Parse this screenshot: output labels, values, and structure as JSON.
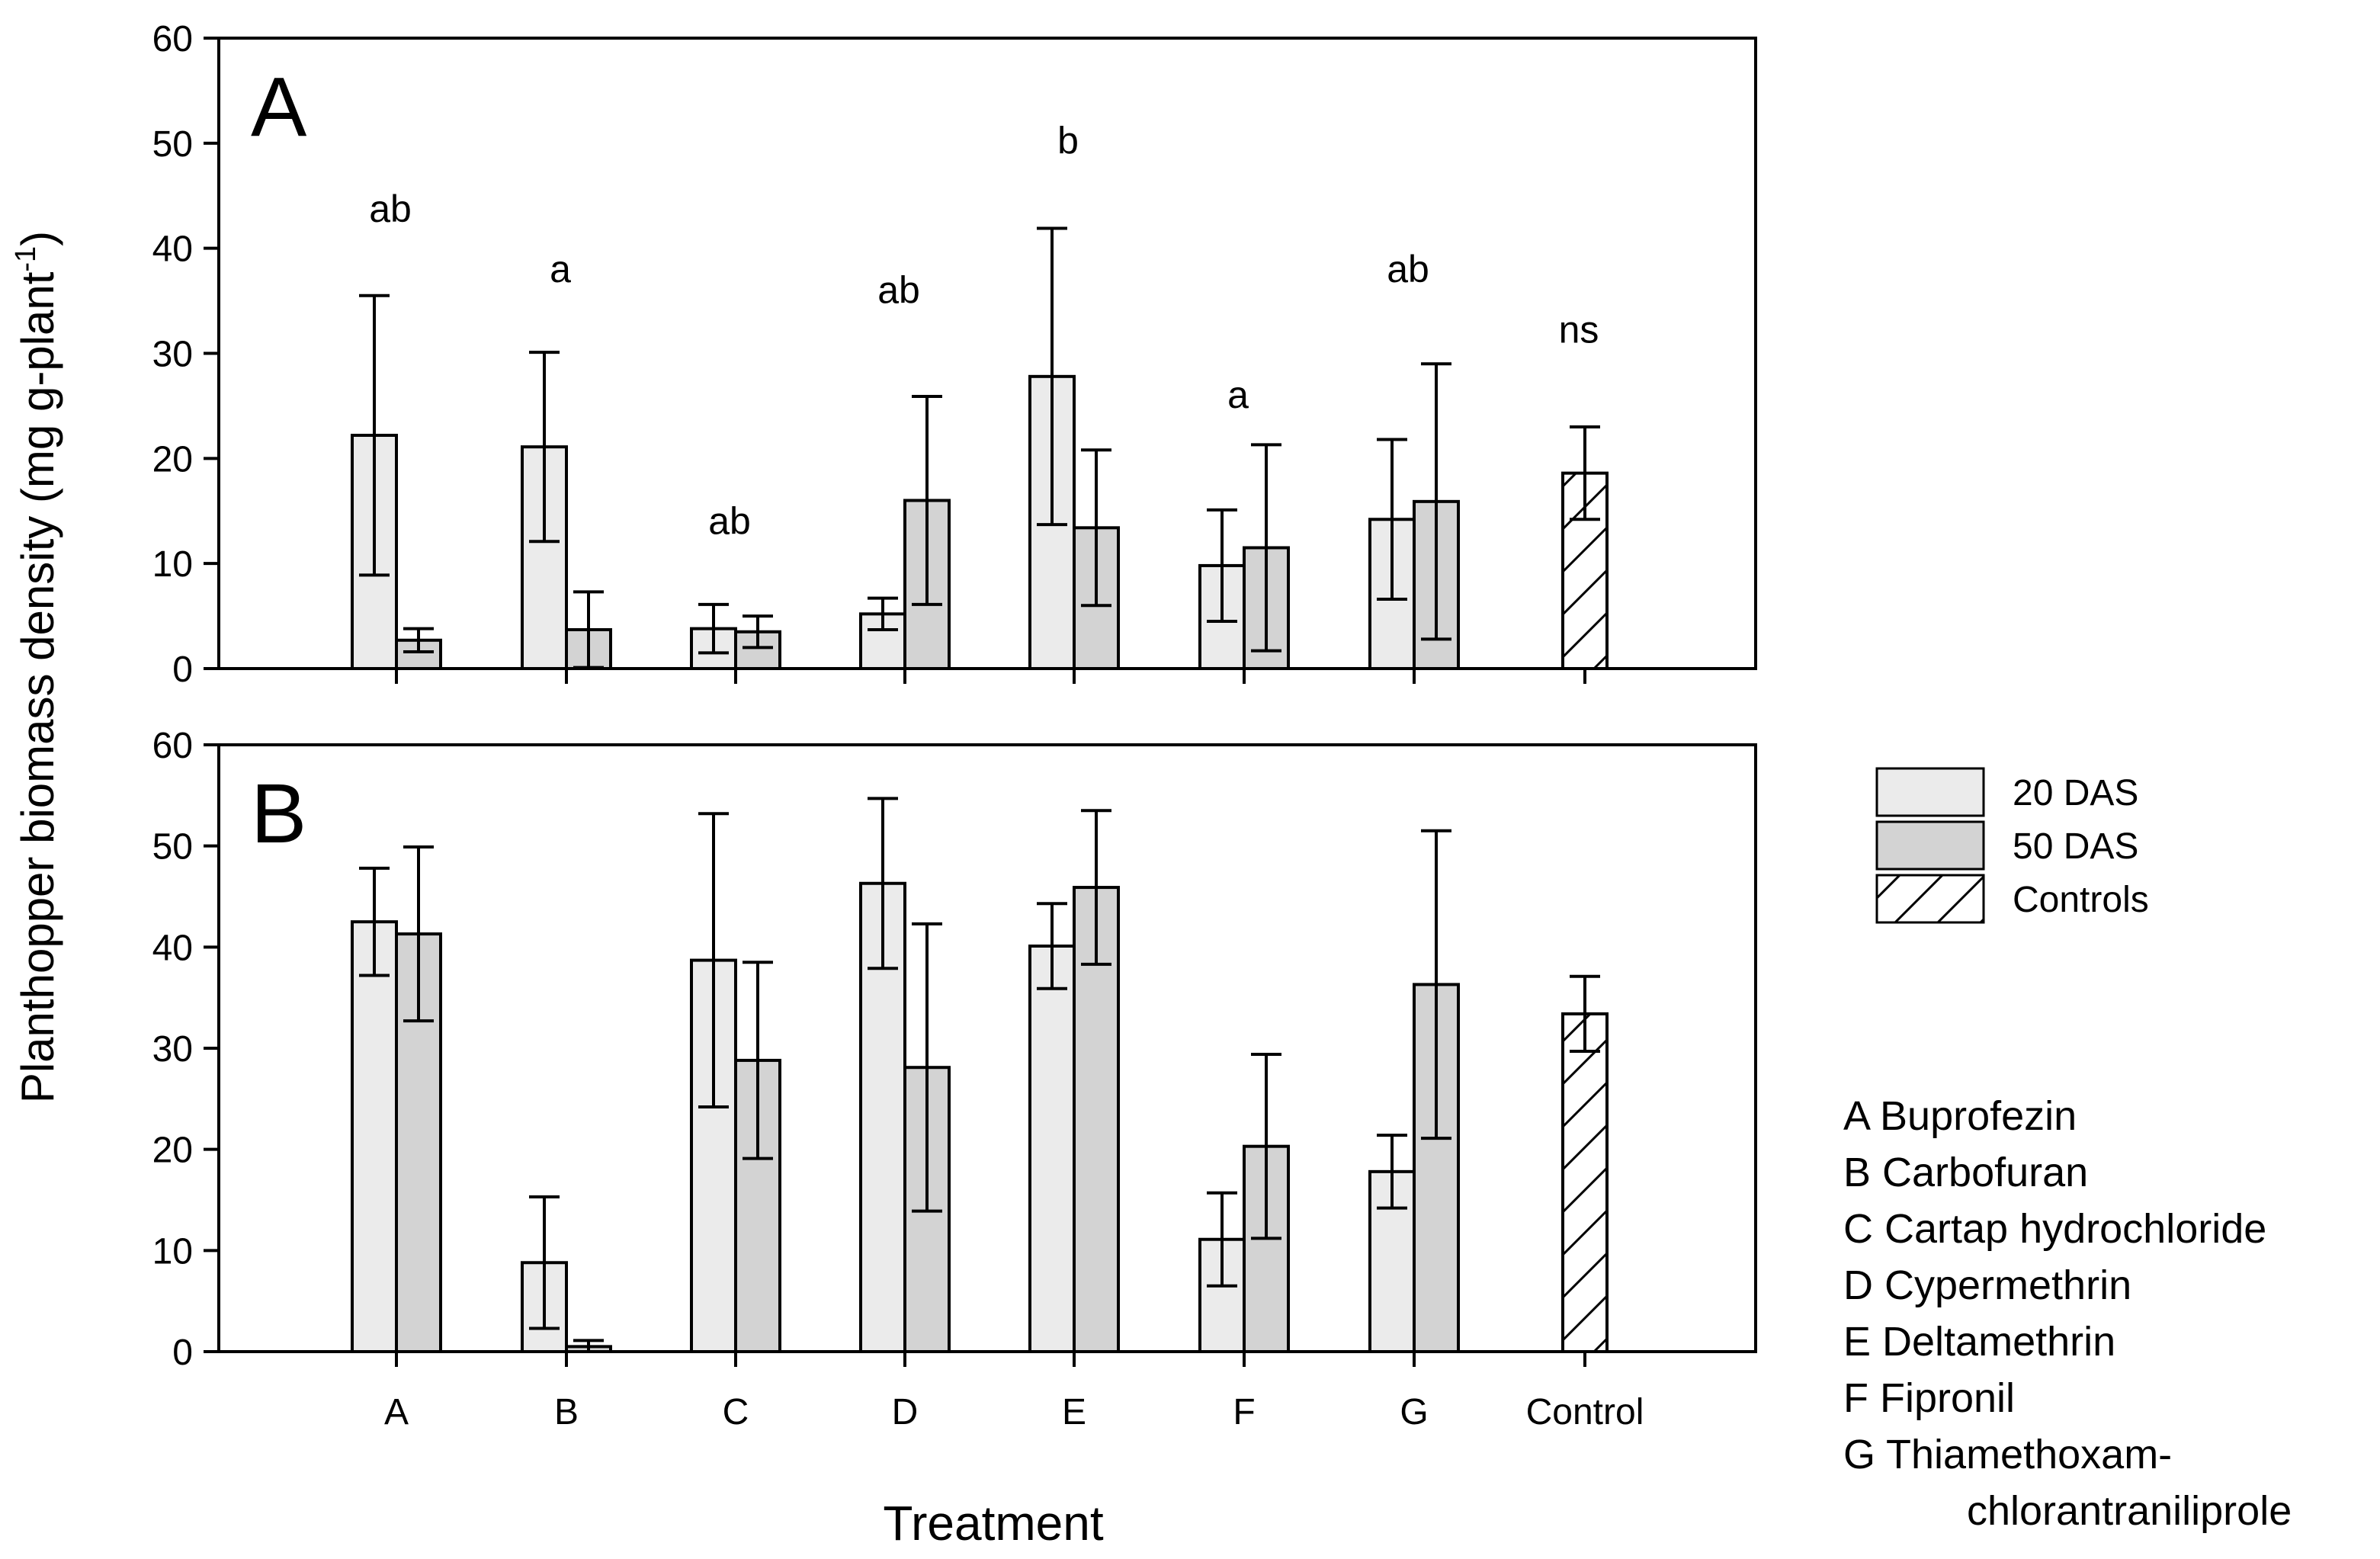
{
  "chart_data": {
    "type": "bar",
    "ylabel_main": "Planthopper biomass density (mg g-plant",
    "ylabel_sup": "-1",
    "ylabel_close": ")",
    "xlabel": "Treatment",
    "categories": [
      "A",
      "B",
      "C",
      "D",
      "E",
      "F",
      "G",
      "Control"
    ],
    "ylim": [
      0,
      60
    ],
    "yticks": [
      "0",
      "10",
      "20",
      "30",
      "40",
      "50",
      "60"
    ],
    "panels": [
      {
        "label": "A",
        "series": [
          {
            "name": "20 DAS",
            "values": [
              22.2,
              21.1,
              3.8,
              5.2,
              27.8,
              9.8,
              14.2,
              null
            ],
            "errors": [
              13.3,
              9.0,
              2.3,
              1.5,
              14.1,
              5.3,
              7.6,
              null
            ]
          },
          {
            "name": "50 DAS",
            "values": [
              2.7,
              3.7,
              3.5,
              16.0,
              13.4,
              11.5,
              15.9,
              null
            ],
            "errors": [
              1.1,
              3.6,
              1.5,
              9.9,
              7.4,
              9.8,
              13.1,
              null
            ]
          },
          {
            "name": "Controls",
            "values": [
              null,
              null,
              null,
              null,
              null,
              null,
              null,
              18.6
            ],
            "errors": [
              null,
              null,
              null,
              null,
              null,
              null,
              null,
              4.4
            ]
          }
        ],
        "annotations": [
          "ab",
          "a",
          "ab",
          "ab",
          "b",
          "a",
          "ab",
          "ns"
        ],
        "annotation_y": [
          42.5,
          36.8,
          12.8,
          34.8,
          49.0,
          24.8,
          36.8,
          31.0
        ]
      },
      {
        "label": "B",
        "series": [
          {
            "name": "20 DAS",
            "values": [
              42.5,
              8.8,
              38.7,
              46.3,
              40.1,
              11.1,
              17.8,
              null
            ],
            "errors": [
              5.3,
              6.5,
              14.5,
              8.4,
              4.2,
              4.6,
              3.6,
              null
            ]
          },
          {
            "name": "50 DAS",
            "values": [
              41.3,
              0.5,
              28.8,
              28.1,
              45.9,
              20.3,
              36.3,
              null
            ],
            "errors": [
              8.6,
              0.6,
              9.7,
              14.2,
              7.6,
              9.1,
              15.2,
              null
            ]
          },
          {
            "name": "Controls",
            "values": [
              null,
              null,
              null,
              null,
              null,
              null,
              null,
              33.4
            ],
            "errors": [
              null,
              null,
              null,
              null,
              null,
              null,
              null,
              3.7
            ]
          }
        ]
      }
    ],
    "legend": [
      {
        "label": "20 DAS",
        "color": "#ebebeb",
        "pattern": "solid"
      },
      {
        "label": "50 DAS",
        "color": "#d3d3d3",
        "pattern": "solid"
      },
      {
        "label": "Controls",
        "color": "#ffffff",
        "pattern": "hatch"
      }
    ],
    "treatment_key": [
      "A Buprofezin",
      "B Carbofuran",
      "C Cartap hydrochloride",
      "D Cypermethrin",
      "E Deltamethrin",
      "F Fipronil",
      "G Thiamethoxam-",
      "chlorantraniliprole"
    ]
  }
}
